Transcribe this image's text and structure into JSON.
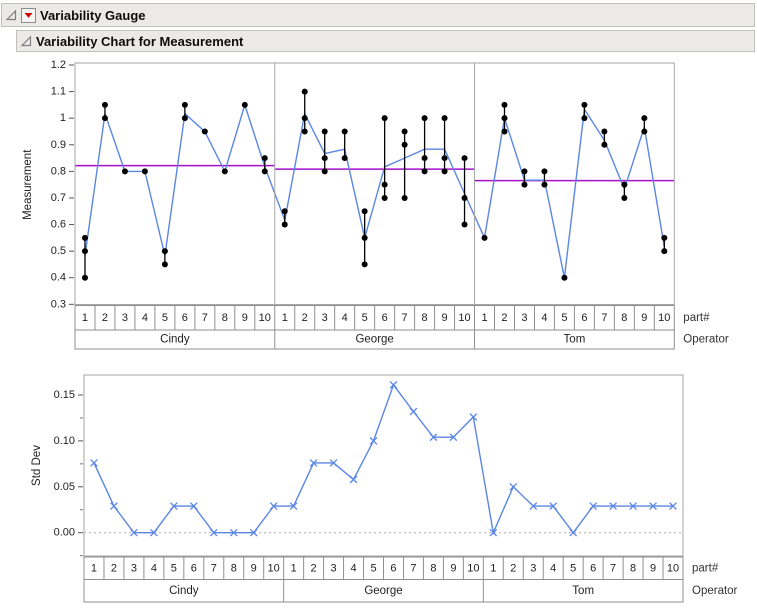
{
  "outline": {
    "root_title": "Variability Gauge",
    "child_title": "Variability Chart for Measurement"
  },
  "colors": {
    "line_blue": "#5b86e3",
    "mean_purple": "#a40fca",
    "point_black": "#000000",
    "frame_gray": "#a6a6a6",
    "cell_border_gray": "#8f8f8f",
    "zero_line_gray": "#aaaaaa",
    "header_bg": "#eceae7",
    "red_triangle": "#cc0000",
    "tick_text": "#222222",
    "side_label_text": "#333333"
  },
  "chart_data": [
    {
      "type": "scatter",
      "name": "variability-chart",
      "ylabel": "Measurement",
      "right_axis_label": "part#",
      "right_group_label": "Operator",
      "ylim": [
        0.3,
        1.2
      ],
      "ytick_values": [
        1.2,
        1.1,
        1.0,
        0.9,
        0.8,
        0.7,
        0.6,
        0.5,
        0.4,
        0.3
      ],
      "ytick_labels": [
        "1.2",
        "1.1",
        "1",
        "0.9",
        "0.8",
        "0.7",
        "0.6",
        "0.5",
        "0.4",
        "0.3"
      ],
      "parts": [
        "1",
        "2",
        "3",
        "4",
        "5",
        "6",
        "7",
        "8",
        "9",
        "10"
      ],
      "show_range_bars": true,
      "show_cell_means": true,
      "show_group_means": true,
      "groups": [
        {
          "operator": "Cindy",
          "cells": [
            [
              0.4,
              0.5,
              0.55
            ],
            [
              1.0,
              1.0,
              1.05
            ],
            [
              0.8,
              0.8,
              0.8
            ],
            [
              0.8,
              0.8,
              0.8
            ],
            [
              0.45,
              0.5,
              0.5
            ],
            [
              1.0,
              1.0,
              1.05
            ],
            [
              0.95,
              0.95,
              0.95
            ],
            [
              0.8,
              0.8,
              0.8
            ],
            [
              1.05,
              1.05,
              1.05
            ],
            [
              0.8,
              0.8,
              0.85
            ]
          ]
        },
        {
          "operator": "George",
          "cells": [
            [
              0.6,
              0.6,
              0.65
            ],
            [
              0.95,
              1.0,
              1.1
            ],
            [
              0.8,
              0.85,
              0.95
            ],
            [
              0.85,
              0.85,
              0.95
            ],
            [
              0.45,
              0.55,
              0.65
            ],
            [
              0.7,
              0.75,
              1.0
            ],
            [
              0.7,
              0.9,
              0.95
            ],
            [
              0.8,
              0.85,
              1.0
            ],
            [
              0.8,
              0.85,
              1.0
            ],
            [
              0.6,
              0.7,
              0.85
            ]
          ]
        },
        {
          "operator": "Tom",
          "cells": [
            [
              0.55,
              0.55,
              0.55
            ],
            [
              0.95,
              1.0,
              1.05
            ],
            [
              0.75,
              0.75,
              0.8
            ],
            [
              0.75,
              0.75,
              0.8
            ],
            [
              0.4,
              0.4,
              0.4
            ],
            [
              1.0,
              1.05,
              1.05
            ],
            [
              0.9,
              0.9,
              0.95
            ],
            [
              0.7,
              0.75,
              0.75
            ],
            [
              0.95,
              0.95,
              1.0
            ],
            [
              0.5,
              0.5,
              0.55
            ]
          ]
        }
      ]
    },
    {
      "type": "line",
      "name": "std-dev-chart",
      "ylabel": "Std Dev",
      "right_axis_label": "part#",
      "right_group_label": "Operator",
      "ylim": [
        -0.025,
        0.172
      ],
      "ytick_values": [
        0.0,
        0.05,
        0.1,
        0.15
      ],
      "ytick_labels": [
        "0.00",
        "0.05",
        "0.10",
        "0.15"
      ],
      "minor_tick_values": [
        -0.025,
        0.025,
        0.075,
        0.125
      ],
      "marker": "x",
      "zero_reference_line": "dotted",
      "parts": [
        "1",
        "2",
        "3",
        "4",
        "5",
        "6",
        "7",
        "8",
        "9",
        "10"
      ],
      "groups": [
        {
          "operator": "Cindy",
          "values": [
            0.076,
            0.029,
            0.0,
            0.0,
            0.029,
            0.029,
            0.0,
            0.0,
            0.0,
            0.029
          ]
        },
        {
          "operator": "George",
          "values": [
            0.029,
            0.076,
            0.076,
            0.058,
            0.1,
            0.161,
            0.132,
            0.104,
            0.104,
            0.126
          ]
        },
        {
          "operator": "Tom",
          "values": [
            0.0,
            0.05,
            0.029,
            0.029,
            0.0,
            0.029,
            0.029,
            0.029,
            0.029,
            0.029
          ]
        }
      ]
    }
  ]
}
